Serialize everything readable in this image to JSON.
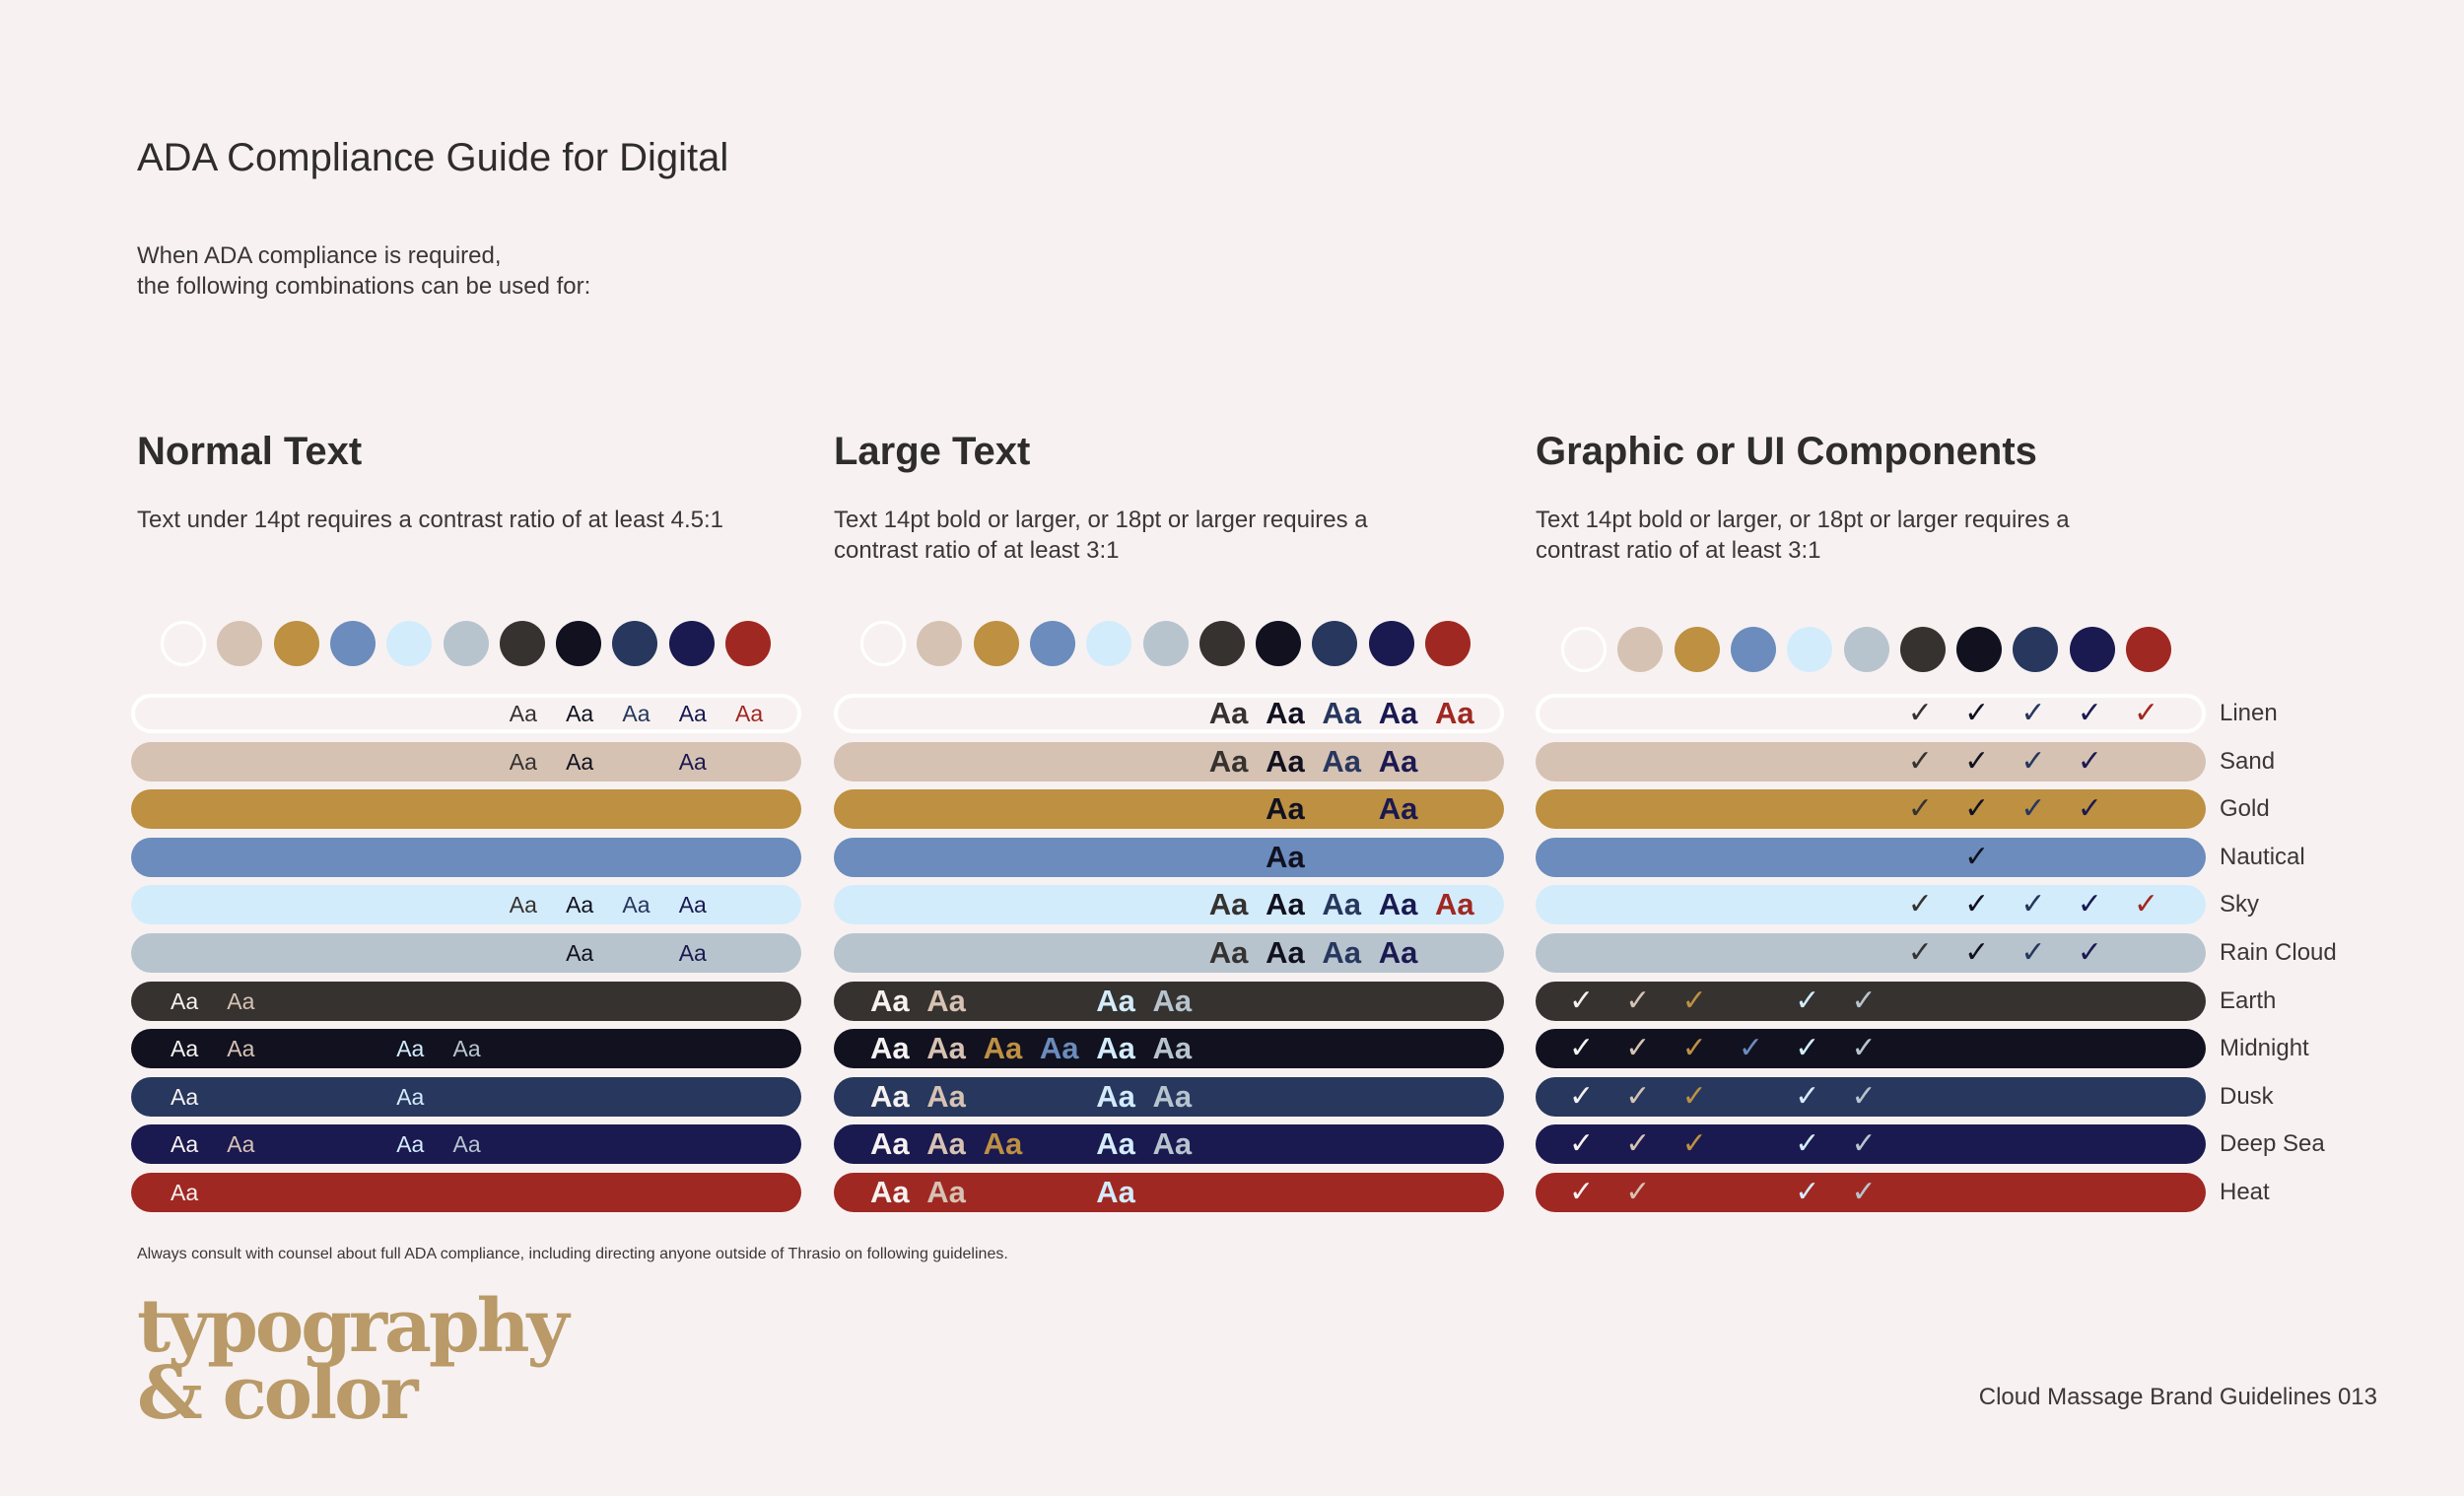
{
  "title": "ADA Compliance Guide for Digital",
  "intro": [
    "When ADA compliance is required,",
    "the following combinations can be used for:"
  ],
  "colors": [
    {
      "name": "Linen",
      "hex": "#f7f2f1"
    },
    {
      "name": "Sand",
      "hex": "#d6c2b3"
    },
    {
      "name": "Gold",
      "hex": "#bd9042"
    },
    {
      "name": "Nautical",
      "hex": "#6b8cbc"
    },
    {
      "name": "Sky",
      "hex": "#d3ecfc"
    },
    {
      "name": "Rain Cloud",
      "hex": "#b7c4ce"
    },
    {
      "name": "Earth",
      "hex": "#353230"
    },
    {
      "name": "Midnight",
      "hex": "#111120"
    },
    {
      "name": "Dusk",
      "hex": "#27375e"
    },
    {
      "name": "Deep Sea",
      "hex": "#1a1950"
    },
    {
      "name": "Heat",
      "hex": "#a02822"
    }
  ],
  "sections": [
    {
      "title": "Normal Text",
      "description": "Text under 14pt requires a contrast ratio of at least 4.5:1",
      "sample": "Aa",
      "kind": "normal",
      "rows": [
        [
          6,
          7,
          8,
          9,
          10
        ],
        [
          6,
          7,
          9
        ],
        [],
        [],
        [
          6,
          7,
          8,
          9
        ],
        [
          7,
          9
        ],
        [
          0,
          1
        ],
        [
          0,
          1,
          4,
          5
        ],
        [
          0,
          4
        ],
        [
          0,
          1,
          4,
          5
        ],
        [
          0
        ]
      ]
    },
    {
      "title": "Large Text",
      "description": "Text 14pt bold or larger, or 18pt or larger requires a contrast ratio of at least 3:1",
      "sample": "Aa",
      "kind": "large",
      "rows": [
        [
          6,
          7,
          8,
          9,
          10
        ],
        [
          6,
          7,
          8,
          9
        ],
        [
          7,
          9
        ],
        [
          7
        ],
        [
          6,
          7,
          8,
          9,
          10
        ],
        [
          6,
          7,
          8,
          9
        ],
        [
          0,
          1,
          4,
          5
        ],
        [
          0,
          1,
          2,
          3,
          4,
          5
        ],
        [
          0,
          1,
          4,
          5
        ],
        [
          0,
          1,
          2,
          4,
          5
        ],
        [
          0,
          1,
          4
        ]
      ]
    },
    {
      "title": "Graphic or UI Components",
      "description": "Text 14pt bold or larger, or 18pt or larger requires a contrast ratio of at least 3:1",
      "sample": "✓",
      "kind": "check",
      "rows": [
        [
          6,
          7,
          8,
          9,
          10
        ],
        [
          6,
          7,
          8,
          9
        ],
        [
          6,
          7,
          8,
          9
        ],
        [
          7
        ],
        [
          6,
          7,
          8,
          9,
          10
        ],
        [
          6,
          7,
          8,
          9
        ],
        [
          0,
          1,
          2,
          4,
          5
        ],
        [
          0,
          1,
          2,
          3,
          4,
          5
        ],
        [
          0,
          1,
          2,
          4,
          5
        ],
        [
          0,
          1,
          2,
          4,
          5
        ],
        [
          0,
          1,
          4,
          5
        ]
      ]
    }
  ],
  "footnote": "Always consult with counsel about full ADA compliance, including directing anyone outside of Thrasio on following guidelines.",
  "logo": [
    "typography",
    "& color"
  ],
  "page_label": "Cloud Massage Brand Guidelines 013"
}
